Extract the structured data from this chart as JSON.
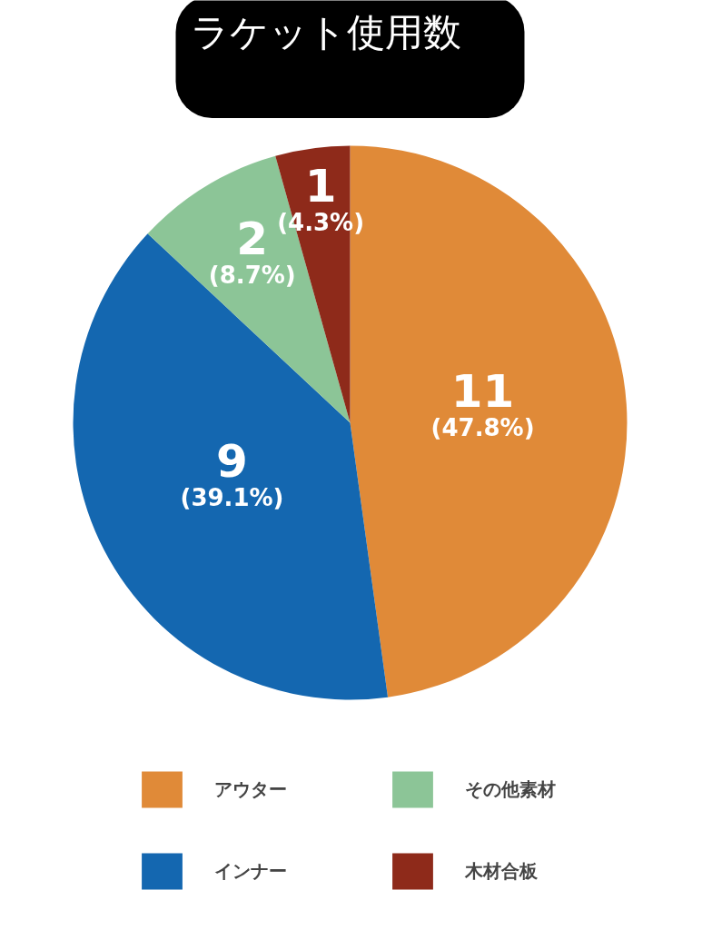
{
  "chart_data": {
    "type": "pie",
    "title": "ラケット使用数",
    "categories": [
      "アウター",
      "インナー",
      "その他素材",
      "木材合板"
    ],
    "values": [
      11,
      9,
      2,
      1
    ],
    "colors": [
      "#e08a38",
      "#1467b0",
      "#8cc597",
      "#8e2a1a"
    ],
    "value_labels": [
      "11\n(47.8%)",
      "9\n(39.1%)",
      "2\n(8.7%)",
      "1\n(4.3%)"
    ],
    "legend": "bottom"
  }
}
